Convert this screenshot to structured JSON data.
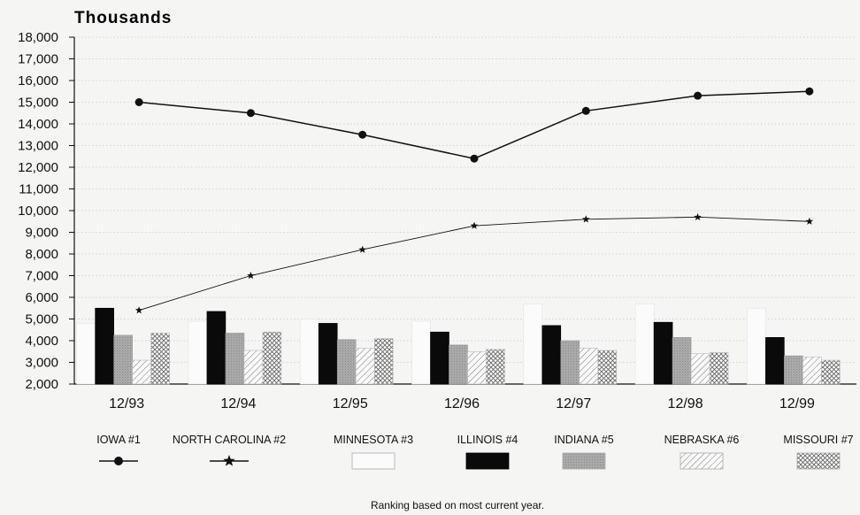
{
  "chart_data": {
    "type": "bar",
    "title": "",
    "ylabel": "Thousands",
    "xlabel": "",
    "ylim": [
      2000,
      18000
    ],
    "yticks": [
      "2,000",
      "3,000",
      "4,000",
      "5,000",
      "6,000",
      "7,000",
      "8,000",
      "9,000",
      "10,000",
      "11,000",
      "12,000",
      "13,000",
      "14,000",
      "15,000",
      "16,000",
      "17,000",
      "18,000"
    ],
    "categories": [
      "12/93",
      "12/94",
      "12/95",
      "12/96",
      "12/97",
      "12/98",
      "12/99"
    ],
    "series": [
      {
        "name": "IOWA #1",
        "type": "line",
        "marker": "circle",
        "values": [
          15000,
          14500,
          13500,
          12400,
          14600,
          15300,
          15500
        ]
      },
      {
        "name": "NORTH CAROLINA #2",
        "type": "line",
        "marker": "star",
        "values": [
          5400,
          7000,
          8200,
          9300,
          9600,
          9700,
          9500
        ]
      },
      {
        "name": "MINNESOTA #3",
        "type": "bar",
        "pattern": "white",
        "values": [
          4800,
          4900,
          5000,
          4900,
          5700,
          5700,
          5500
        ]
      },
      {
        "name": "ILLINOIS #4",
        "type": "bar",
        "pattern": "black",
        "values": [
          5500,
          5350,
          4800,
          4400,
          4700,
          4850,
          4150
        ]
      },
      {
        "name": "INDIANA #5",
        "type": "bar",
        "pattern": "gray",
        "values": [
          4250,
          4350,
          4050,
          3800,
          4000,
          4150,
          3300
        ]
      },
      {
        "name": "NEBRASKA #6",
        "type": "bar",
        "pattern": "hatch",
        "values": [
          3100,
          3550,
          3650,
          3500,
          3650,
          3400,
          3250
        ]
      },
      {
        "name": "MISSOURI #7",
        "type": "bar",
        "pattern": "crosshatch",
        "values": [
          4350,
          4400,
          4100,
          3600,
          3550,
          3450,
          3100
        ]
      }
    ],
    "grid": true,
    "legend_position": "bottom",
    "footnote": "Ranking based on most current year."
  },
  "colors": {
    "background": "#f5f5f3",
    "line": "#111111",
    "illinois": "#0a0a0a",
    "indiana": "#a9a9a9",
    "grid": "#c8c8c8"
  }
}
